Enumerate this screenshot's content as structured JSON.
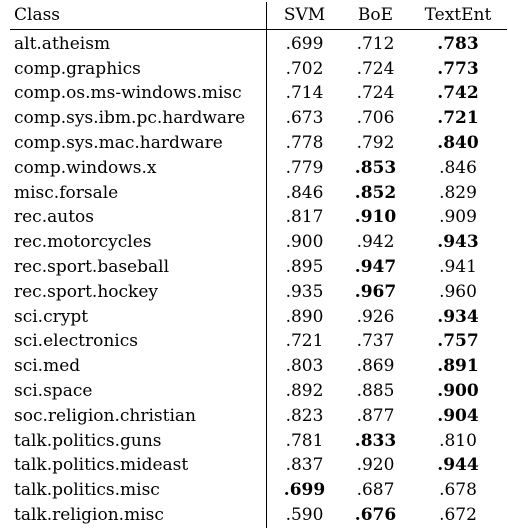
{
  "table": {
    "headers": {
      "class": "Class",
      "svm": "SVM",
      "boe": "BoE",
      "textent": "TextEnt"
    },
    "rows": [
      {
        "class": "alt.atheism",
        "svm": ".699",
        "boe": ".712",
        "textent": ".783",
        "best": "textent"
      },
      {
        "class": "comp.graphics",
        "svm": ".702",
        "boe": ".724",
        "textent": ".773",
        "best": "textent"
      },
      {
        "class": "comp.os.ms-windows.misc",
        "svm": ".714",
        "boe": ".724",
        "textent": ".742",
        "best": "textent"
      },
      {
        "class": "comp.sys.ibm.pc.hardware",
        "svm": ".673",
        "boe": ".706",
        "textent": ".721",
        "best": "textent"
      },
      {
        "class": "comp.sys.mac.hardware",
        "svm": ".778",
        "boe": ".792",
        "textent": ".840",
        "best": "textent"
      },
      {
        "class": "comp.windows.x",
        "svm": ".779",
        "boe": ".853",
        "textent": ".846",
        "best": "boe"
      },
      {
        "class": "misc.forsale",
        "svm": ".846",
        "boe": ".852",
        "textent": ".829",
        "best": "boe"
      },
      {
        "class": "rec.autos",
        "svm": ".817",
        "boe": ".910",
        "textent": ".909",
        "best": "boe"
      },
      {
        "class": "rec.motorcycles",
        "svm": ".900",
        "boe": ".942",
        "textent": ".943",
        "best": "textent"
      },
      {
        "class": "rec.sport.baseball",
        "svm": ".895",
        "boe": ".947",
        "textent": ".941",
        "best": "boe"
      },
      {
        "class": "rec.sport.hockey",
        "svm": ".935",
        "boe": ".967",
        "textent": ".960",
        "best": "boe"
      },
      {
        "class": "sci.crypt",
        "svm": ".890",
        "boe": ".926",
        "textent": ".934",
        "best": "textent"
      },
      {
        "class": "sci.electronics",
        "svm": ".721",
        "boe": ".737",
        "textent": ".757",
        "best": "textent"
      },
      {
        "class": "sci.med",
        "svm": ".803",
        "boe": ".869",
        "textent": ".891",
        "best": "textent"
      },
      {
        "class": "sci.space",
        "svm": ".892",
        "boe": ".885",
        "textent": ".900",
        "best": "textent"
      },
      {
        "class": "soc.religion.christian",
        "svm": ".823",
        "boe": ".877",
        "textent": ".904",
        "best": "textent"
      },
      {
        "class": "talk.politics.guns",
        "svm": ".781",
        "boe": ".833",
        "textent": ".810",
        "best": "boe"
      },
      {
        "class": "talk.politics.mideast",
        "svm": ".837",
        "boe": ".920",
        "textent": ".944",
        "best": "textent"
      },
      {
        "class": "talk.politics.misc",
        "svm": ".699",
        "boe": ".687",
        "textent": ".678",
        "best": "svm"
      },
      {
        "class": "talk.religion.misc",
        "svm": ".590",
        "boe": ".676",
        "textent": ".672",
        "best": "boe"
      }
    ]
  }
}
